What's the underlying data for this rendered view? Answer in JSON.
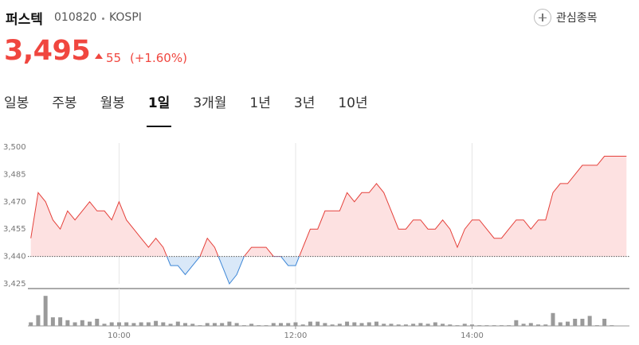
{
  "header": {
    "name": "퍼스텍",
    "code": "010820",
    "market": "KOSPI",
    "price": "3,495",
    "change": "55",
    "change_pct": "(+1.60%)",
    "watchlist": "관심종목"
  },
  "tabs": {
    "items": [
      "일봉",
      "주봉",
      "월봉",
      "1일",
      "3개월",
      "1년",
      "3년",
      "10년"
    ],
    "selected": 3
  },
  "chart_data": [
    {
      "type": "line",
      "x": [
        540,
        545,
        550,
        555,
        560,
        565,
        570,
        575,
        580,
        585,
        590,
        595,
        600,
        605,
        610,
        615,
        620,
        625,
        630,
        635,
        640,
        645,
        650,
        655,
        660,
        665,
        670,
        675,
        680,
        685,
        690,
        695,
        700,
        705,
        710,
        715,
        720,
        725,
        730,
        735,
        740,
        745,
        750,
        755,
        760,
        765,
        770,
        775,
        780,
        785,
        790,
        795,
        800,
        805,
        810,
        815,
        820,
        825,
        830,
        835,
        840,
        845,
        850,
        855,
        860,
        865,
        870,
        875,
        880,
        885,
        890,
        895,
        900,
        905,
        910,
        915,
        920,
        925,
        930,
        935,
        940,
        945
      ],
      "values": [
        3450,
        3475,
        3470,
        3460,
        3455,
        3465,
        3460,
        3465,
        3470,
        3465,
        3465,
        3460,
        3470,
        3460,
        3455,
        3450,
        3445,
        3450,
        3445,
        3435,
        3435,
        3430,
        3435,
        3440,
        3450,
        3445,
        3435,
        3425,
        3430,
        3440,
        3445,
        3445,
        3445,
        3440,
        3440,
        3435,
        3435,
        3445,
        3455,
        3455,
        3465,
        3465,
        3465,
        3475,
        3470,
        3475,
        3475,
        3480,
        3475,
        3465,
        3455,
        3455,
        3460,
        3460,
        3455,
        3455,
        3460,
        3455,
        3445,
        3455,
        3460,
        3460,
        3455,
        3450,
        3450,
        3455,
        3460,
        3460,
        3455,
        3460,
        3460,
        3475,
        3480,
        3480,
        3485,
        3490,
        3490,
        3490,
        3495,
        3495,
        3495,
        3495
      ],
      "baseline": 3440,
      "up_color": "#e5403a",
      "up_fill": "#fde1e1",
      "down_color": "#3d86d6",
      "down_fill": "#d9e8f8",
      "xlim": [
        538,
        947
      ],
      "xticks": [
        {
          "value": 600,
          "label": "10:00"
        },
        {
          "value": 720,
          "label": "12:00"
        },
        {
          "value": 840,
          "label": "14:00"
        }
      ],
      "ylim": [
        3425,
        3500
      ],
      "yticks": [
        {
          "value": 3500,
          "label": "3,500"
        },
        {
          "value": 3485,
          "label": "3,485"
        },
        {
          "value": 3470,
          "label": "3,470"
        },
        {
          "value": 3455,
          "label": "3,455"
        },
        {
          "value": 3440,
          "label": "3,440"
        },
        {
          "value": 3425,
          "label": "3,425"
        }
      ],
      "xgrid": true
    },
    {
      "type": "bar",
      "values": [
        5,
        15,
        42,
        12,
        12,
        8,
        5,
        8,
        6,
        10,
        3,
        5,
        5,
        5,
        4,
        5,
        5,
        7,
        5,
        3,
        6,
        4,
        3,
        1,
        4,
        4,
        4,
        6,
        4,
        1,
        3,
        1,
        1,
        4,
        4,
        4,
        5,
        2,
        6,
        6,
        4,
        2,
        3,
        6,
        5,
        4,
        5,
        6,
        3,
        3,
        2,
        2,
        3,
        4,
        3,
        5,
        3,
        2,
        1,
        3,
        2,
        1,
        1,
        1,
        1,
        1,
        8,
        3,
        4,
        2,
        2,
        18,
        5,
        6,
        10,
        10,
        14,
        1,
        10,
        1,
        0,
        0
      ],
      "color": "#9a9a9a",
      "ylim": [
        0,
        50
      ]
    }
  ]
}
